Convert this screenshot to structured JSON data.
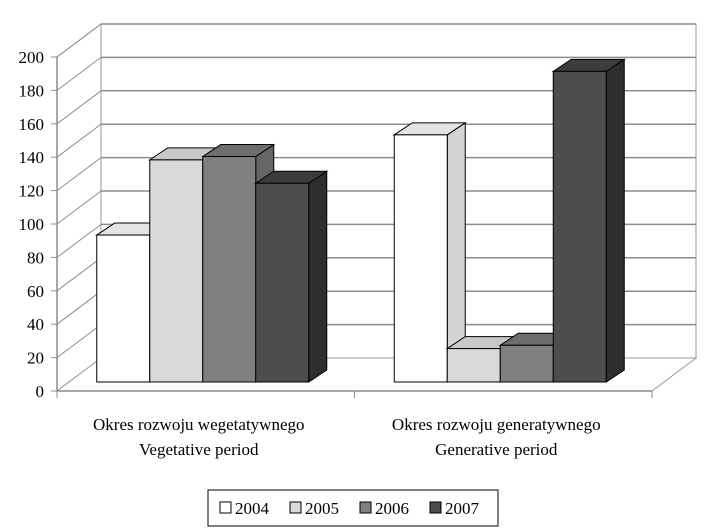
{
  "chart_data": {
    "type": "bar",
    "title": "",
    "xlabel": "",
    "ylabel": "",
    "ylim": [
      0,
      200
    ],
    "yticks": [
      0,
      20,
      40,
      60,
      80,
      100,
      120,
      140,
      160,
      180,
      200
    ],
    "grid": true,
    "categories": [
      [
        "Okres rozwoju wegetatywnego",
        "Vegetative period"
      ],
      [
        "Okres rozwoju generatywnego",
        "Generative period"
      ]
    ],
    "series": [
      {
        "name": "2004",
        "values": [
          88,
          148
        ],
        "color": "#ffffff",
        "top_color": "#e4e4e4",
        "side_color": "#d4d4d4"
      },
      {
        "name": "2005",
        "values": [
          133,
          20
        ],
        "color": "#d9d9d9",
        "top_color": "#c8c8c8",
        "side_color": "#b4b4b4"
      },
      {
        "name": "2006",
        "values": [
          135,
          22
        ],
        "color": "#808080",
        "top_color": "#6e6e6e",
        "side_color": "#656565"
      },
      {
        "name": "2007",
        "values": [
          119,
          186
        ],
        "color": "#4d4d4d",
        "top_color": "#3c3c3c",
        "side_color": "#2e2e2e"
      }
    ],
    "legend_position": "bottom"
  }
}
